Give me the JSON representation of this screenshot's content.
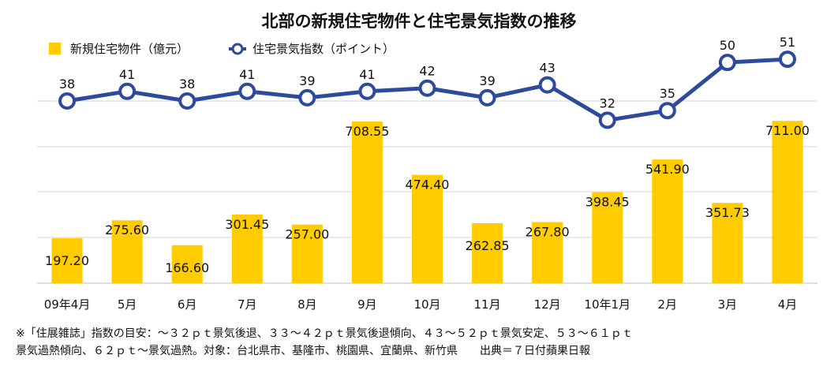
{
  "chart_data": {
    "type": "bar+line",
    "title": "北部の新規住宅物件と住宅景気指数の推移",
    "categories": [
      "09年4月",
      "5月",
      "6月",
      "7月",
      "8月",
      "9月",
      "10月",
      "11月",
      "12月",
      "10年1月",
      "2月",
      "3月",
      "4月"
    ],
    "series": [
      {
        "name": "新規住宅物件（億元）",
        "type": "bar",
        "color": "#FFCC00",
        "values": [
          197.2,
          275.6,
          166.6,
          301.45,
          257.0,
          708.55,
          474.4,
          262.85,
          267.8,
          398.45,
          541.9,
          351.73,
          711.0
        ],
        "labels": [
          "197.20",
          "275.60",
          "166.60",
          "301.45",
          "257.00",
          "708.55",
          "474.40",
          "262.85",
          "267.80",
          "398.45",
          "541.90",
          "351.73",
          "711.00"
        ]
      },
      {
        "name": "住宅景気指数（ポイント）",
        "type": "line",
        "color": "#2E4A9C",
        "values": [
          38,
          41,
          38,
          41,
          39,
          41,
          42,
          39,
          43,
          32,
          35,
          50,
          51
        ],
        "labels": [
          "38",
          "41",
          "38",
          "41",
          "39",
          "41",
          "42",
          "39",
          "43",
          "32",
          "35",
          "50",
          "51"
        ]
      }
    ],
    "gridlines": true,
    "legend_position": "top-left"
  },
  "notes": {
    "line1": "※「住展雑誌」指数の目安：～３２ｐｔ景気後退、３３～４２ｐｔ景気後退傾向、４３～５２ｐｔ景気安定、５３～６１ｐｔ",
    "line2": "景気過熱傾向、６２ｐｔ～景気過熱。対象：台北県市、基隆市、桃園県、宜蘭県、新竹県　　出典＝７日付蘋果日報"
  }
}
